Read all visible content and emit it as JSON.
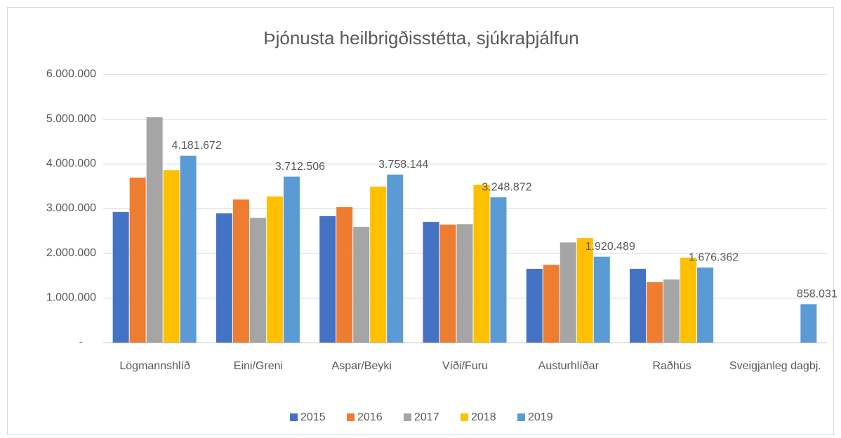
{
  "chart_data": {
    "type": "bar",
    "title": "Þjónusta heilbrigðisstétta, sjúkraþjálfun",
    "categories": [
      "Lögmannshlíð",
      "Eini/Greni",
      "Aspar/Beyki",
      "Víði/Furu",
      "Austurhlíðar",
      "Raðhús",
      "Sveigjanleg dagbj."
    ],
    "series": [
      {
        "name": "2015",
        "color": "#4472c4",
        "values": [
          2920000,
          2890000,
          2830000,
          2700000,
          1650000,
          1650000,
          null
        ]
      },
      {
        "name": "2016",
        "color": "#ed7d31",
        "values": [
          3690000,
          3200000,
          3030000,
          2640000,
          1740000,
          1350000,
          null
        ]
      },
      {
        "name": "2017",
        "color": "#a5a5a5",
        "values": [
          5040000,
          2790000,
          2590000,
          2650000,
          2240000,
          1410000,
          null
        ]
      },
      {
        "name": "2018",
        "color": "#ffc000",
        "values": [
          3860000,
          3270000,
          3490000,
          3530000,
          2340000,
          1900000,
          null
        ]
      },
      {
        "name": "2019",
        "color": "#5b9bd5",
        "values": [
          4181672,
          3712506,
          3758144,
          3248872,
          1920489,
          1676362,
          858031
        ],
        "value_labels": [
          "4.181.672",
          "3.712.506",
          "3.758.144",
          "3.248.872",
          "1.920.489",
          "1.676.362",
          "858.031"
        ]
      }
    ],
    "ylim": [
      0,
      6000000
    ],
    "yticks": [
      {
        "value": 0,
        "label": "-"
      },
      {
        "value": 1000000,
        "label": "1.000.000"
      },
      {
        "value": 2000000,
        "label": "2.000.000"
      },
      {
        "value": 3000000,
        "label": "3.000.000"
      },
      {
        "value": 4000000,
        "label": "4.000.000"
      },
      {
        "value": 5000000,
        "label": "5.000.000"
      },
      {
        "value": 6000000,
        "label": "6.000.000"
      }
    ],
    "grid": true,
    "legend": "bottom"
  }
}
